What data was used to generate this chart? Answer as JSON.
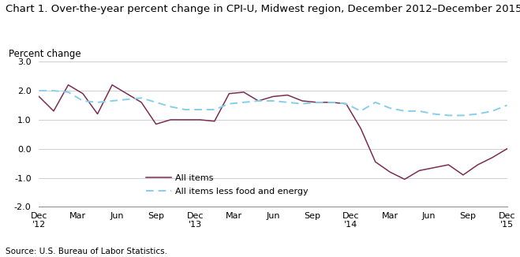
{
  "title": "Chart 1. Over-the-year percent change in CPI-U, Midwest region, December 2012–December 2015",
  "ylabel": "Percent change",
  "source": "Source: U.S. Bureau of Labor Statistics.",
  "ylim": [
    -2.0,
    3.0
  ],
  "yticks": [
    -2.0,
    -1.0,
    0.0,
    1.0,
    2.0,
    3.0
  ],
  "all_items": [
    1.8,
    1.3,
    2.2,
    1.9,
    1.2,
    2.2,
    1.9,
    1.6,
    0.85,
    1.0,
    1.0,
    1.0,
    0.95,
    1.9,
    1.95,
    1.65,
    1.8,
    1.85,
    1.65,
    1.6,
    1.6,
    1.55,
    0.7,
    -0.45,
    -0.8,
    -1.05,
    -0.75,
    -0.65,
    -0.55,
    -0.9,
    -0.55,
    -0.3,
    0.0
  ],
  "all_items_less": [
    2.0,
    2.0,
    1.95,
    1.65,
    1.6,
    1.65,
    1.7,
    1.75,
    1.6,
    1.45,
    1.35,
    1.35,
    1.35,
    1.55,
    1.6,
    1.65,
    1.65,
    1.6,
    1.55,
    1.6,
    1.6,
    1.55,
    1.3,
    1.6,
    1.4,
    1.3,
    1.3,
    1.2,
    1.15,
    1.15,
    1.2,
    1.3,
    1.5
  ],
  "x_tick_labels": [
    "Dec\n'12",
    "Mar",
    "Jun",
    "Sep",
    "Dec\n'13",
    "Mar",
    "Jun",
    "Sep",
    "Dec\n'14",
    "Mar",
    "Jun",
    "Sep",
    "Dec\n'15"
  ],
  "x_tick_positions": [
    0,
    3,
    6,
    9,
    12,
    15,
    18,
    21,
    24,
    27,
    30,
    33,
    36
  ],
  "all_items_color": "#7B2D52",
  "all_items_less_color": "#87CEEB",
  "legend_all_items": "All items",
  "legend_all_items_less": "All items less food and energy",
  "title_fontsize": 9.5,
  "ylabel_fontsize": 8.5,
  "tick_fontsize": 8.0,
  "source_fontsize": 7.5
}
